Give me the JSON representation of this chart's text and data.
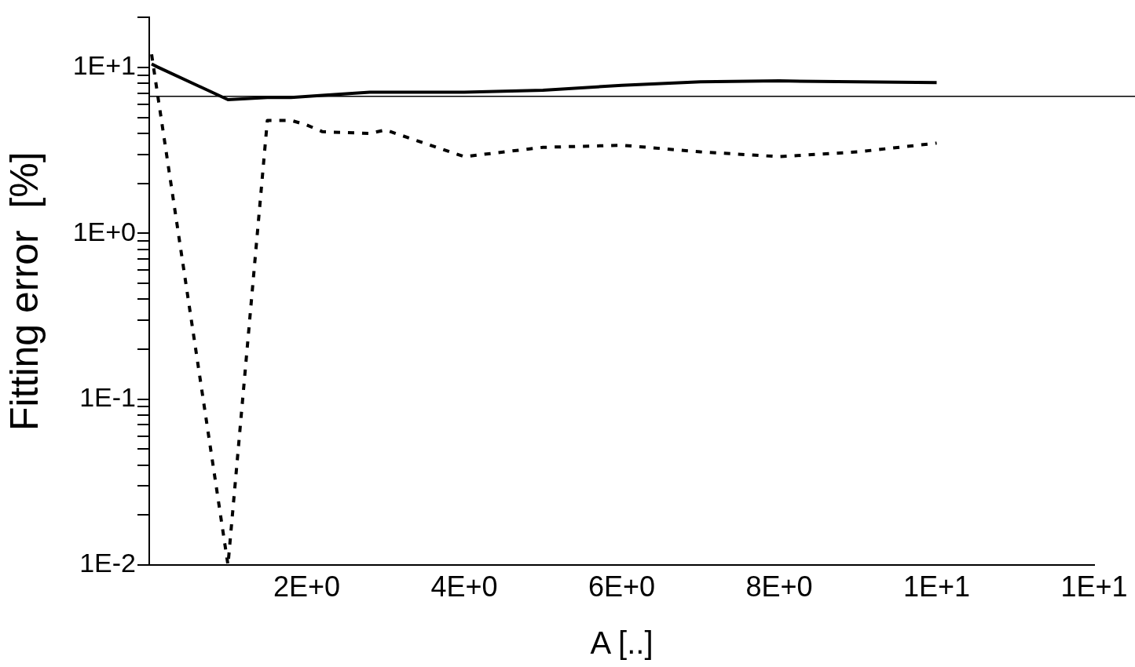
{
  "chart_data": {
    "type": "line",
    "xlabel": "A [..]",
    "ylabel": "Fitting error  [%]",
    "log": "y",
    "grid": false,
    "legend": false,
    "marker": "none",
    "xlim": [
      0,
      12
    ],
    "xticks": [
      {
        "value": 2,
        "label": "2E+0"
      },
      {
        "value": 4,
        "label": "4E+0"
      },
      {
        "value": 6,
        "label": "6E+0"
      },
      {
        "value": 8,
        "label": "8E+0"
      },
      {
        "value": 10,
        "label": "1E+1"
      },
      {
        "value": 12,
        "label": "1E+1"
      }
    ],
    "ylim": [
      0.01,
      20
    ],
    "yticks": [
      {
        "value": 0.01,
        "label": "1E-2"
      },
      {
        "value": 0.02,
        "label": null
      },
      {
        "value": 0.03,
        "label": null
      },
      {
        "value": 0.04,
        "label": null
      },
      {
        "value": 0.05,
        "label": null
      },
      {
        "value": 0.06,
        "label": null
      },
      {
        "value": 0.07,
        "label": null
      },
      {
        "value": 0.08,
        "label": null
      },
      {
        "value": 0.09,
        "label": null
      },
      {
        "value": 0.1,
        "label": "1E-1"
      },
      {
        "value": 0.2,
        "label": null
      },
      {
        "value": 0.3,
        "label": null
      },
      {
        "value": 0.4,
        "label": null
      },
      {
        "value": 0.5,
        "label": null
      },
      {
        "value": 0.6,
        "label": null
      },
      {
        "value": 0.7,
        "label": null
      },
      {
        "value": 0.8,
        "label": null
      },
      {
        "value": 0.9,
        "label": null
      },
      {
        "value": 1,
        "label": "1E+0"
      },
      {
        "value": 2,
        "label": null
      },
      {
        "value": 3,
        "label": null
      },
      {
        "value": 4,
        "label": null
      },
      {
        "value": 5,
        "label": null
      },
      {
        "value": 6,
        "label": null
      },
      {
        "value": 7,
        "label": null
      },
      {
        "value": 8,
        "label": null
      },
      {
        "value": 9,
        "label": null
      },
      {
        "value": 10,
        "label": "1E+1"
      },
      {
        "value": 20,
        "label": null
      }
    ],
    "ref_lines": [
      {
        "axis": "y",
        "value": 6.7,
        "color": "#000000"
      }
    ],
    "series": [
      {
        "color": "#000000",
        "line_style": "solid",
        "x": [
          0.03,
          0.1,
          1,
          1.5,
          1.8,
          2.2,
          2.8,
          4,
          5,
          6,
          7,
          8,
          10
        ],
        "values": [
          10.5,
          10.1,
          6.4,
          6.6,
          6.6,
          6.8,
          7.1,
          7.1,
          7.3,
          7.8,
          8.2,
          8.3,
          8.1
        ]
      },
      {
        "color": "#000000",
        "line_style": "dotted",
        "x": [
          0.03,
          1,
          1.5,
          1.8,
          2,
          2.2,
          2.8,
          3,
          4,
          5,
          6,
          7,
          8,
          9,
          10
        ],
        "values": [
          12,
          0.01,
          4.8,
          4.8,
          4.5,
          4.1,
          4,
          4.2,
          2.9,
          3.3,
          3.4,
          3.1,
          2.9,
          3.1,
          3.5
        ]
      }
    ]
  }
}
